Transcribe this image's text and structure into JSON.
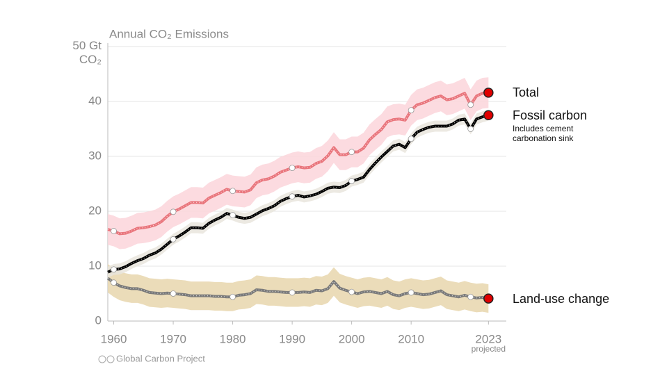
{
  "chart_data": {
    "type": "line",
    "title": "Annual CO₂ Emissions",
    "x": [
      1959,
      1960,
      1961,
      1962,
      1963,
      1964,
      1965,
      1966,
      1967,
      1968,
      1969,
      1970,
      1971,
      1972,
      1973,
      1974,
      1975,
      1976,
      1977,
      1978,
      1979,
      1980,
      1981,
      1982,
      1983,
      1984,
      1985,
      1986,
      1987,
      1988,
      1989,
      1990,
      1991,
      1992,
      1993,
      1994,
      1995,
      1996,
      1997,
      1998,
      1999,
      2000,
      2001,
      2002,
      2003,
      2004,
      2005,
      2006,
      2007,
      2008,
      2009,
      2010,
      2011,
      2012,
      2013,
      2014,
      2015,
      2016,
      2017,
      2018,
      2019,
      2020,
      2021,
      2022,
      2023
    ],
    "xlim": [
      1959,
      2026
    ],
    "xticks": [
      1960,
      1970,
      1980,
      1990,
      2000,
      2010,
      2023
    ],
    "ylim": [
      0,
      50
    ],
    "yticks": [
      0,
      10,
      20,
      30,
      40,
      {
        "value": 50,
        "label": "50 Gt CO₂"
      }
    ],
    "grid": true,
    "series": [
      {
        "name": "Total",
        "color": "#e9757c",
        "band_color": "#fbd5da",
        "uncertainty": 2.8,
        "values": [
          16.7,
          16.4,
          15.9,
          16.0,
          16.4,
          16.9,
          17.0,
          17.2,
          17.5,
          18.1,
          19.1,
          19.9,
          20.4,
          21.0,
          21.6,
          21.6,
          21.5,
          22.4,
          22.9,
          23.4,
          24.0,
          23.7,
          23.6,
          23.5,
          23.9,
          25.2,
          25.7,
          25.9,
          26.4,
          27.1,
          27.5,
          27.9,
          28.1,
          27.9,
          28.0,
          28.7,
          29.1,
          30.1,
          31.6,
          30.3,
          30.3,
          30.8,
          30.8,
          31.5,
          33.0,
          34.0,
          34.9,
          36.3,
          36.7,
          36.8,
          36.6,
          38.4,
          39.4,
          39.7,
          40.2,
          40.7,
          41.0,
          40.3,
          40.5,
          41.0,
          41.5,
          39.4,
          41.0,
          41.5,
          41.6
        ]
      },
      {
        "name": "Fossil carbon",
        "color": "#000000",
        "band_color": "#e9e5dd",
        "uncertainty": 1.0,
        "values": [
          8.9,
          9.4,
          9.5,
          9.9,
          10.5,
          11.0,
          11.4,
          12.0,
          12.4,
          13.1,
          14.0,
          14.9,
          15.5,
          16.2,
          17.0,
          17.0,
          16.9,
          17.8,
          18.4,
          18.9,
          19.6,
          19.3,
          18.9,
          18.7,
          18.9,
          19.5,
          20.1,
          20.5,
          21.0,
          21.8,
          22.3,
          22.7,
          22.9,
          22.6,
          22.8,
          23.1,
          23.6,
          24.2,
          24.4,
          24.3,
          24.7,
          25.5,
          25.8,
          26.2,
          27.6,
          28.8,
          29.9,
          30.9,
          31.9,
          32.2,
          31.6,
          33.2,
          34.4,
          34.9,
          35.3,
          35.5,
          35.5,
          35.5,
          35.9,
          36.6,
          36.8,
          35.0,
          36.8,
          37.2,
          37.5
        ]
      },
      {
        "name": "Land-use change",
        "color": "#7a7a7a",
        "band_color": "#e8d6ad",
        "uncertainty": 2.6,
        "values": [
          7.8,
          7.0,
          6.4,
          6.1,
          5.9,
          5.9,
          5.6,
          5.2,
          5.1,
          5.0,
          5.1,
          5.0,
          4.9,
          4.8,
          4.6,
          4.6,
          4.6,
          4.6,
          4.5,
          4.5,
          4.4,
          4.4,
          4.7,
          4.8,
          5.0,
          5.7,
          5.6,
          5.4,
          5.4,
          5.3,
          5.2,
          5.2,
          5.2,
          5.3,
          5.2,
          5.6,
          5.5,
          5.9,
          7.2,
          6.0,
          5.6,
          5.3,
          5.0,
          5.3,
          5.4,
          5.2,
          5.0,
          5.4,
          4.8,
          4.6,
          5.0,
          5.2,
          5.0,
          4.8,
          4.9,
          5.2,
          5.5,
          4.8,
          4.6,
          4.4,
          4.7,
          4.4,
          4.2,
          4.3,
          4.1
        ]
      }
    ],
    "annotations": [
      "Includes cement carbonation sink",
      "projected"
    ],
    "source": "Global Carbon Project"
  }
}
